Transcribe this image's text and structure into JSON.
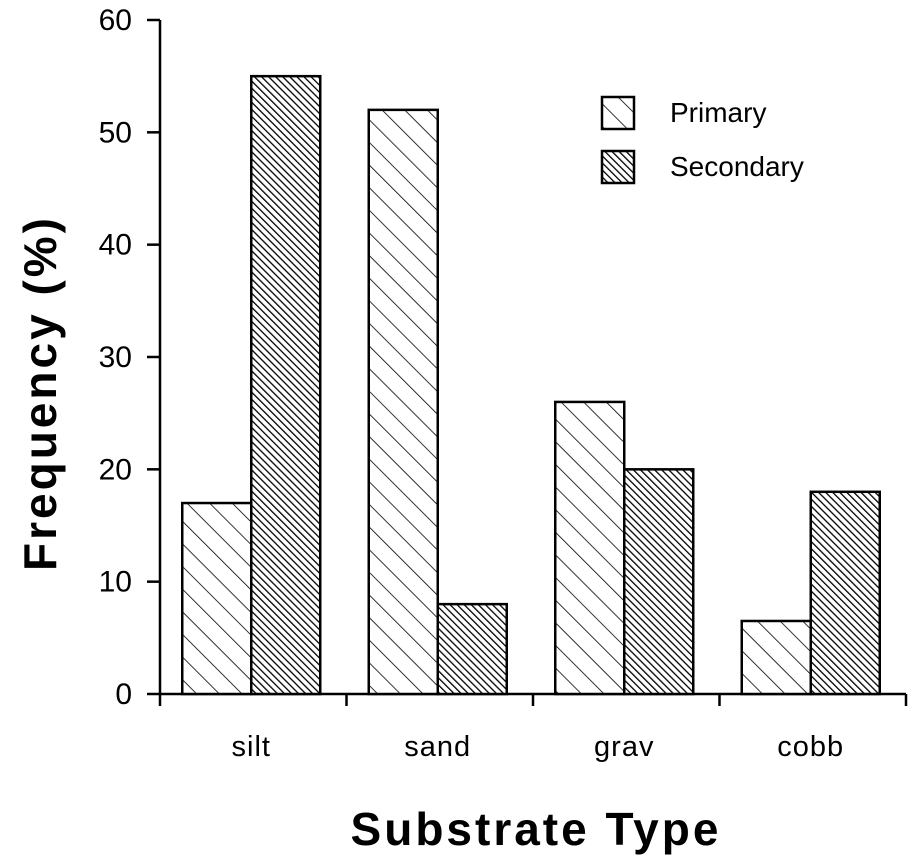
{
  "chart_data": {
    "type": "bar",
    "title": "",
    "xlabel": "Substrate Type",
    "ylabel": "Frequency (%)",
    "categories": [
      "silt",
      "sand",
      "grav",
      "cobb"
    ],
    "series": [
      {
        "name": "Primary",
        "values": [
          17,
          52,
          26,
          6.5
        ],
        "pattern": "light-hatch"
      },
      {
        "name": "Secondary",
        "values": [
          55,
          8,
          20,
          18
        ],
        "pattern": "dense-hatch"
      }
    ],
    "ylim": [
      0,
      60
    ],
    "yticks": [
      0,
      10,
      20,
      30,
      40,
      50,
      60
    ],
    "grid": false,
    "legend_position": "top-right"
  }
}
